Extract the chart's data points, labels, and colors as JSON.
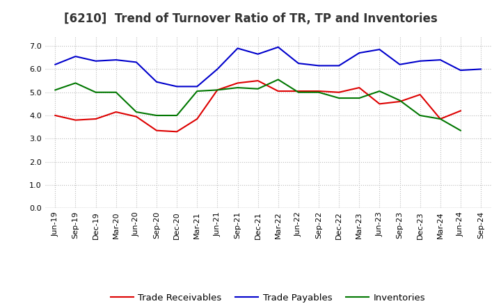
{
  "title": "[6210]  Trend of Turnover Ratio of TR, TP and Inventories",
  "labels": [
    "Jun-19",
    "Sep-19",
    "Dec-19",
    "Mar-20",
    "Jun-20",
    "Sep-20",
    "Dec-20",
    "Mar-21",
    "Jun-21",
    "Sep-21",
    "Dec-21",
    "Mar-22",
    "Jun-22",
    "Sep-22",
    "Dec-22",
    "Mar-23",
    "Jun-23",
    "Sep-23",
    "Dec-23",
    "Mar-24",
    "Jun-24",
    "Sep-24"
  ],
  "trade_receivables": [
    4.0,
    3.8,
    3.85,
    4.15,
    3.95,
    3.35,
    3.3,
    3.85,
    5.1,
    5.4,
    5.5,
    5.05,
    5.05,
    5.05,
    5.0,
    5.2,
    4.5,
    4.6,
    4.9,
    3.85,
    4.2,
    null
  ],
  "trade_payables": [
    6.2,
    6.55,
    6.35,
    6.4,
    6.3,
    5.45,
    5.25,
    5.25,
    6.0,
    6.9,
    6.65,
    6.95,
    6.25,
    6.15,
    6.15,
    6.7,
    6.85,
    6.2,
    6.35,
    6.4,
    5.95,
    6.0
  ],
  "inventories": [
    5.1,
    5.4,
    5.0,
    5.0,
    4.15,
    4.0,
    4.0,
    5.05,
    5.1,
    5.2,
    5.15,
    5.55,
    5.0,
    5.0,
    4.75,
    4.75,
    5.05,
    4.65,
    4.0,
    3.85,
    3.35,
    null
  ],
  "tr_color": "#dd0000",
  "tp_color": "#0000cc",
  "inv_color": "#007700",
  "ylim": [
    0.0,
    7.4
  ],
  "yticks": [
    0.0,
    1.0,
    2.0,
    3.0,
    4.0,
    5.0,
    6.0,
    7.0
  ],
  "legend_labels": [
    "Trade Receivables",
    "Trade Payables",
    "Inventories"
  ],
  "background_color": "#ffffff",
  "plot_bg_color": "#ffffff",
  "grid_color": "#bbbbbb",
  "title_fontsize": 12,
  "tick_fontsize": 8,
  "legend_fontsize": 9.5
}
